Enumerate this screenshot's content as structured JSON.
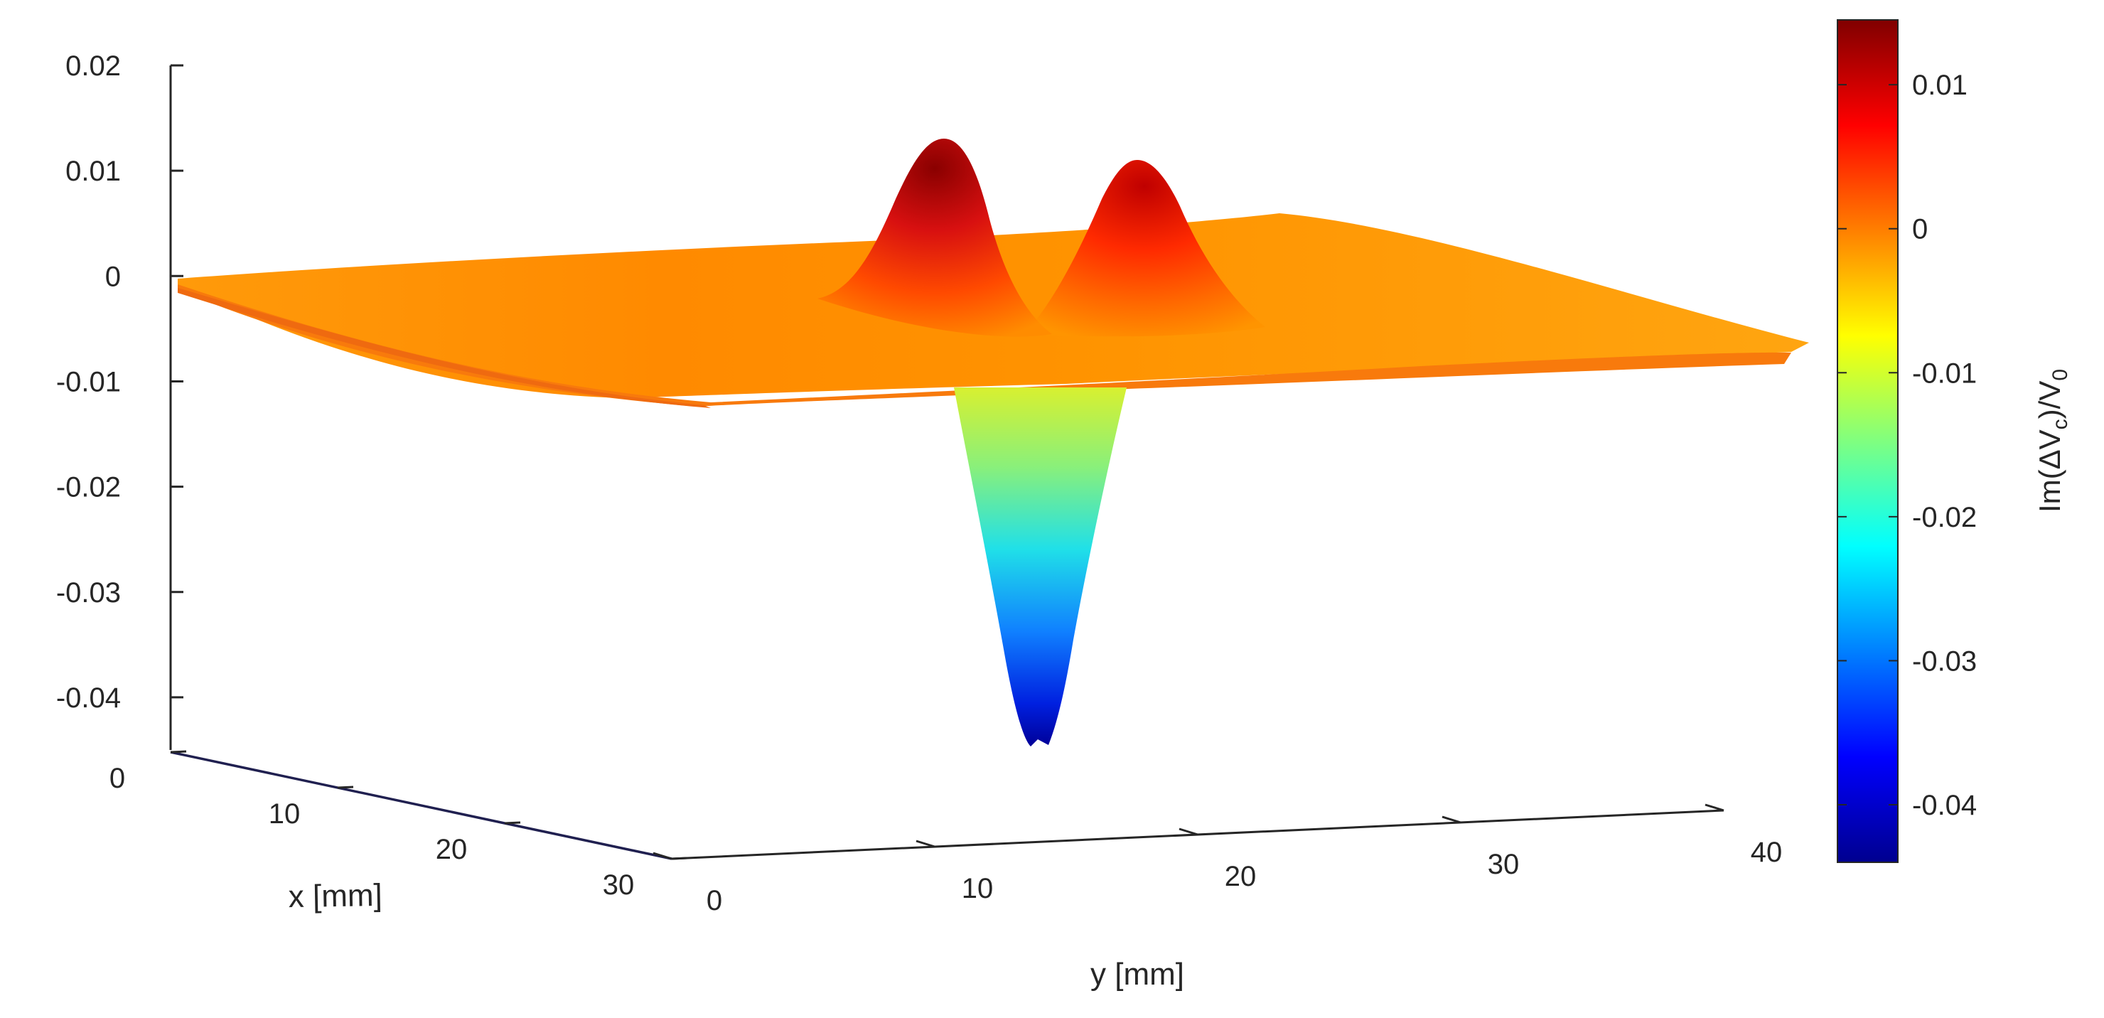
{
  "chart_data": {
    "type": "surface3d",
    "title": "",
    "xlabel": "x [mm]",
    "ylabel": "y [mm]",
    "zlabel": "",
    "colorbar_label": {
      "main": "Im(ΔV",
      "sub1": "c",
      "mid": ")/V",
      "sub2": "0"
    },
    "xlim": [
      0,
      30
    ],
    "ylim": [
      0,
      40
    ],
    "zlim": [
      -0.045,
      0.02
    ],
    "x_ticks": [
      "0",
      "10",
      "20",
      "30"
    ],
    "y_ticks": [
      "0",
      "10",
      "20",
      "30",
      "40"
    ],
    "z_ticks": [
      "0.02",
      "0.01",
      "0",
      "-0.01",
      "-0.02",
      "-0.03",
      "-0.04"
    ],
    "colorbar_ticks": [
      "0.01",
      "0",
      "-0.01",
      "-0.02",
      "-0.03",
      "-0.04"
    ],
    "colorbar_range": [
      -0.044,
      0.0145
    ],
    "colormap": "jet",
    "baseline_z": -0.0005,
    "features": [
      {
        "kind": "peak",
        "x": 14,
        "y": 16.5,
        "z": 0.0145
      },
      {
        "kind": "peak",
        "x": 14,
        "y": 22.5,
        "z": 0.011
      },
      {
        "kind": "trough",
        "x": 15,
        "y": 19,
        "z": -0.0445
      }
    ],
    "grid": false
  }
}
